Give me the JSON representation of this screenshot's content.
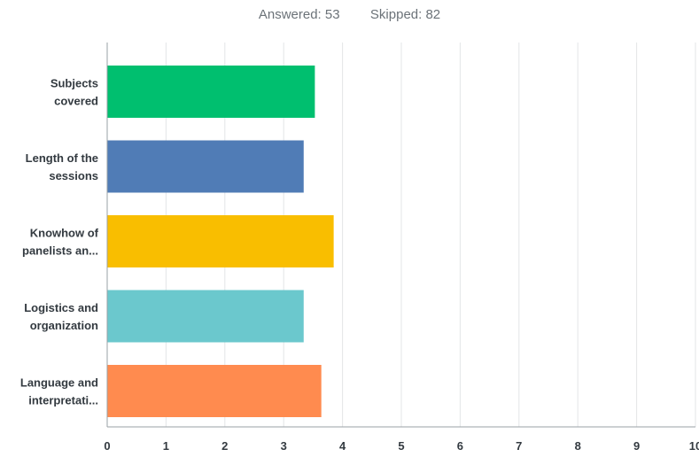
{
  "summary": {
    "answered_label": "Answered:",
    "answered_count": "53",
    "skipped_label": "Skipped:",
    "skipped_count": "82"
  },
  "chart_data": {
    "type": "bar",
    "orientation": "horizontal",
    "title": "",
    "xlabel": "",
    "ylabel": "",
    "xlim": [
      0,
      10
    ],
    "x_ticks": [
      0,
      1,
      2,
      3,
      4,
      5,
      6,
      7,
      8,
      9,
      10
    ],
    "grid": true,
    "legend": "none",
    "categories": [
      [
        "Subjects",
        "covered"
      ],
      [
        "Length of the",
        "sessions"
      ],
      [
        "Knowhow of",
        "panelists an..."
      ],
      [
        "Logistics and",
        "organization"
      ],
      [
        "Language and",
        "interpretati..."
      ]
    ],
    "values": [
      3.53,
      3.34,
      3.85,
      3.34,
      3.64
    ],
    "colors": [
      "#00bf6f",
      "#507cb6",
      "#f9be00",
      "#6bc8cd",
      "#ff8b4f"
    ]
  }
}
